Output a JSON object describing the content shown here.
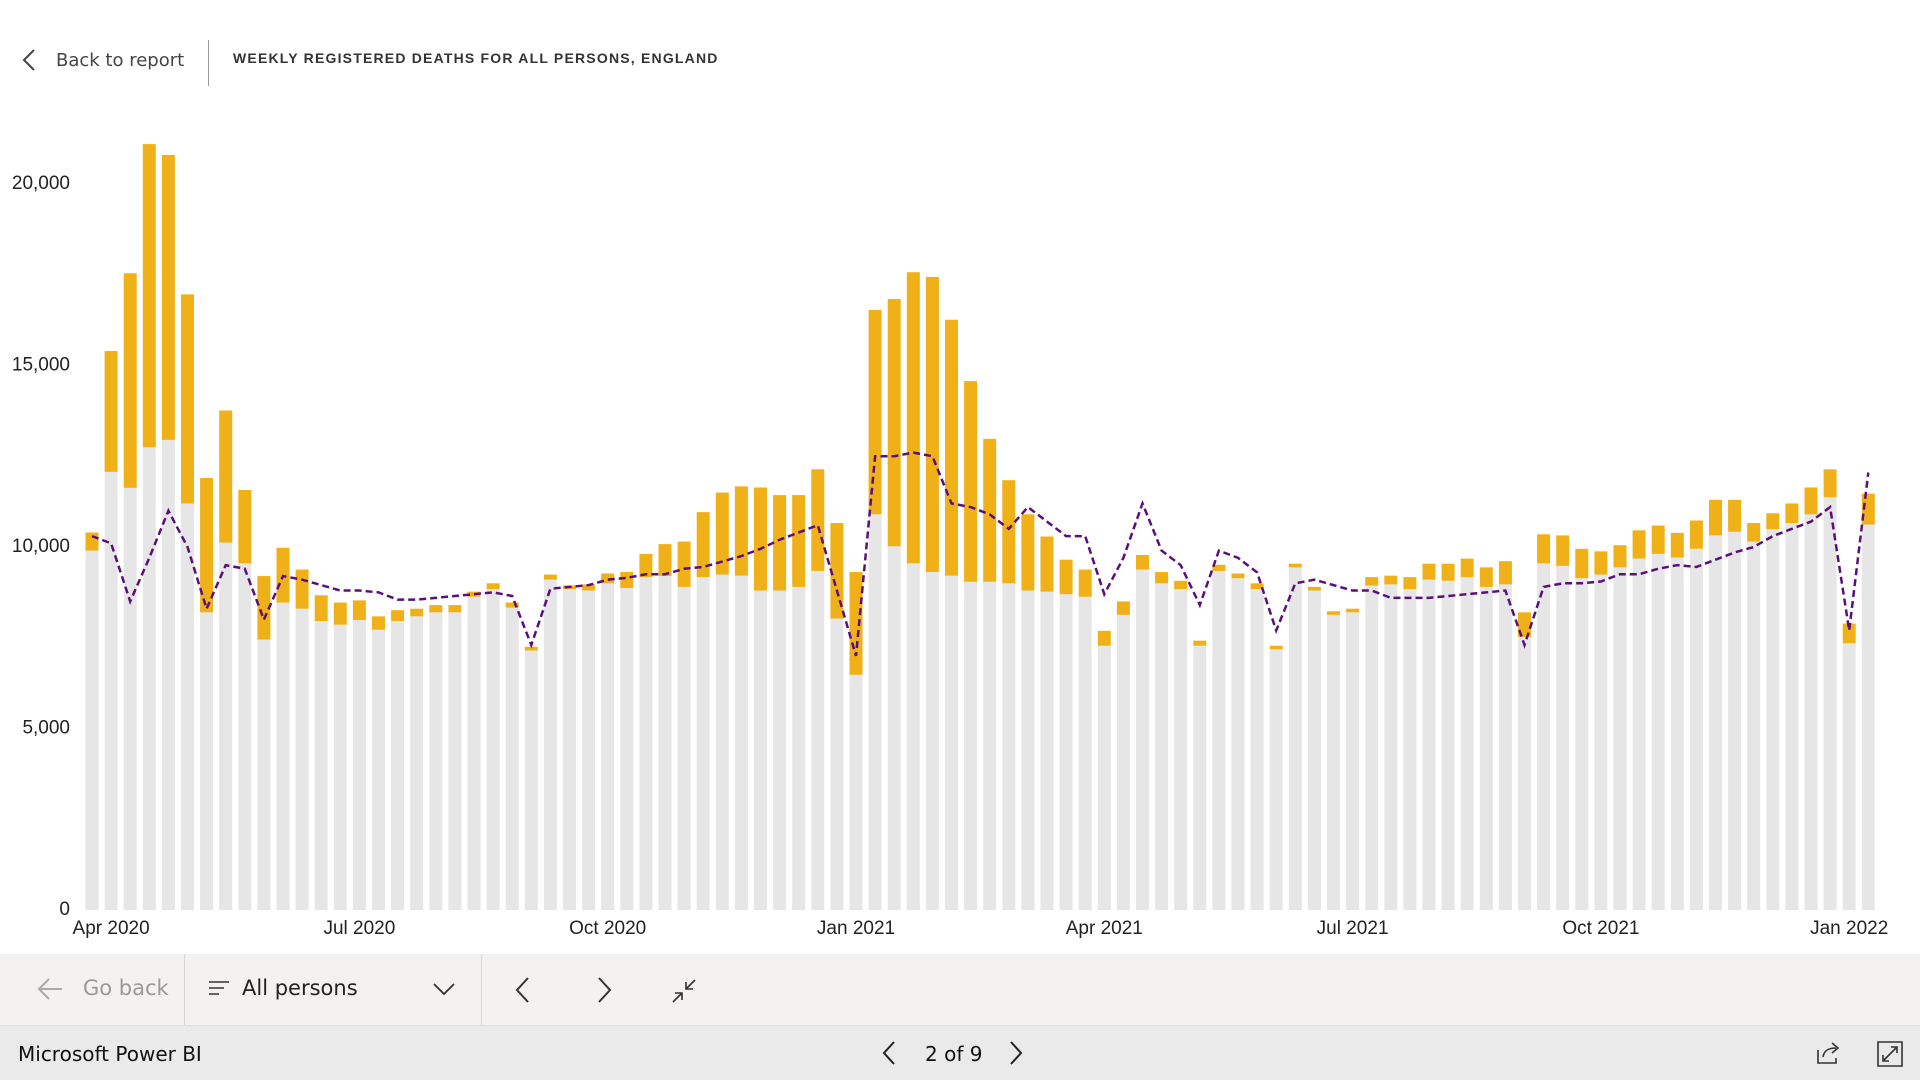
{
  "header": {
    "back": "Back to report",
    "title": "WEEKLY REGISTERED DEATHS FOR ALL PERSONS, ENGLAND"
  },
  "chart_data": {
    "type": "bar",
    "stacked": true,
    "grid": false,
    "categories": [
      null,
      "Apr 2020",
      null,
      null,
      null,
      null,
      null,
      null,
      null,
      null,
      null,
      null,
      null,
      null,
      "Jul 2020",
      null,
      null,
      null,
      null,
      null,
      null,
      null,
      null,
      null,
      null,
      null,
      null,
      "Oct 2020",
      null,
      null,
      null,
      null,
      null,
      null,
      null,
      null,
      null,
      null,
      null,
      null,
      "Jan 2021",
      null,
      null,
      null,
      null,
      null,
      null,
      null,
      null,
      null,
      null,
      null,
      null,
      "Apr 2021",
      null,
      null,
      null,
      null,
      null,
      null,
      null,
      null,
      null,
      null,
      null,
      null,
      "Jul 2021",
      null,
      null,
      null,
      null,
      null,
      null,
      null,
      null,
      null,
      null,
      null,
      null,
      "Oct 2021",
      null,
      null,
      null,
      null,
      null,
      null,
      null,
      null,
      null,
      null,
      null,
      null,
      "Jan 2022",
      null
    ],
    "ylim": [
      0,
      21000
    ],
    "yticks": [
      0,
      {
        "value": 5000,
        "label": "5,000"
      },
      {
        "value": 10000,
        "label": "10,000"
      },
      {
        "value": 15000,
        "label": "15,000"
      },
      {
        "value": 20000,
        "label": "20,000"
      }
    ],
    "series": [
      {
        "color": "#e6e6e6",
        "type": "bar",
        "values": [
          9900,
          12070,
          11630,
          12750,
          12950,
          11200,
          8200,
          10120,
          9550,
          7450,
          8470,
          8300,
          7960,
          7860,
          7990,
          7720,
          7960,
          8090,
          8200,
          8200,
          8630,
          8840,
          8330,
          7150,
          9100,
          8840,
          8800,
          9000,
          8870,
          9170,
          9200,
          8900,
          9170,
          9240,
          9210,
          8800,
          8800,
          8900,
          9340,
          8030,
          6480,
          10900,
          10020,
          9550,
          9310,
          9210,
          9040,
          9040,
          9000,
          8800,
          8770,
          8700,
          8630,
          7280,
          8130,
          9380,
          9000,
          8840,
          7280,
          9340,
          9140,
          8840,
          7180,
          9440,
          8800,
          8130,
          8200,
          8940,
          8970,
          8840,
          9100,
          9070,
          9170,
          8900,
          8970,
          7520,
          9550,
          9480,
          9140,
          9240,
          9440,
          9680,
          9810,
          9710,
          9950,
          10320,
          10420,
          10150,
          10490,
          10660,
          10900,
          11370,
          7350,
          10620
        ]
      },
      {
        "color": "#efb117",
        "type": "bar",
        "values": [
          500,
          3330,
          5910,
          8350,
          7850,
          5760,
          3700,
          3640,
          2020,
          1750,
          1510,
          1080,
          710,
          610,
          540,
          370,
          300,
          210,
          200,
          200,
          140,
          160,
          140,
          100,
          140,
          100,
          170,
          270,
          440,
          640,
          880,
          1250,
          1790,
          2260,
          2460,
          2840,
          2630,
          2530,
          2800,
          2630,
          2830,
          5630,
          6810,
          8020,
          8130,
          7050,
          5530,
          3940,
          2840,
          2100,
          1520,
          950,
          750,
          410,
          370,
          400,
          310,
          230,
          140,
          170,
          130,
          160,
          100,
          100,
          100,
          100,
          100,
          230,
          240,
          330,
          440,
          470,
          510,
          540,
          640,
          680,
          800,
          840,
          810,
          640,
          610,
          780,
          780,
          680,
          780,
          980,
          880,
          510,
          440,
          540,
          740,
          770,
          540,
          850
        ]
      },
      {
        "color": "#5b0f7c",
        "type": "line",
        "dashed": true,
        "values": [
          10300,
          10100,
          8500,
          9700,
          11000,
          10000,
          8300,
          9500,
          9400,
          8000,
          9200,
          9100,
          8950,
          8800,
          8800,
          8750,
          8550,
          8550,
          8600,
          8650,
          8700,
          8750,
          8650,
          7300,
          8850,
          8900,
          8950,
          9100,
          9150,
          9250,
          9250,
          9400,
          9450,
          9600,
          9750,
          9950,
          10200,
          10400,
          10600,
          8800,
          7000,
          12500,
          12500,
          12600,
          12500,
          11200,
          11100,
          10900,
          10500,
          11100,
          10700,
          10300,
          10300,
          8700,
          9700,
          11200,
          9900,
          9500,
          8400,
          9900,
          9700,
          9300,
          7700,
          9000,
          9100,
          8950,
          8800,
          8800,
          8600,
          8600,
          8600,
          8650,
          8700,
          8750,
          8800,
          7300,
          8900,
          9000,
          9000,
          9050,
          9250,
          9250,
          9400,
          9500,
          9450,
          9650,
          9850,
          10000,
          10300,
          10500,
          10700,
          11100,
          7700,
          12050
        ]
      }
    ]
  },
  "toolbar": {
    "go_back": "Go back",
    "filter": "All persons"
  },
  "footer": {
    "app": "Microsoft Power BI",
    "page": "2 of 9"
  }
}
